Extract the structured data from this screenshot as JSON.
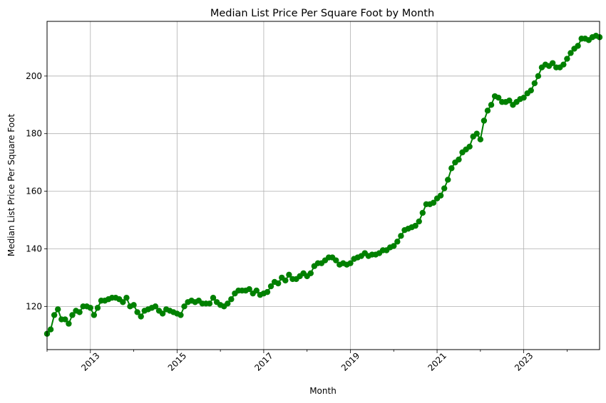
{
  "chart_data": {
    "type": "line",
    "title": "Median List Price Per Square Foot by Month",
    "xlabel": "Month",
    "ylabel": "Median List Price Per Square Foot",
    "x_range": [
      "2012-01",
      "2024-10"
    ],
    "ylim": [
      105,
      219
    ],
    "grid": true,
    "line_color": "#008000",
    "marker": "circle",
    "x_ticks": [
      "2013",
      "2015",
      "2017",
      "2019",
      "2021",
      "2023"
    ],
    "y_ticks": [
      120,
      140,
      160,
      180,
      200
    ],
    "series": [
      {
        "points": [
          [
            "2012-01",
            110.5
          ],
          [
            "2012-02",
            112.0
          ],
          [
            "2012-03",
            117.0
          ],
          [
            "2012-04",
            119.0
          ],
          [
            "2012-05",
            115.5
          ],
          [
            "2012-06",
            115.5
          ],
          [
            "2012-07",
            114.0
          ],
          [
            "2012-08",
            117.0
          ],
          [
            "2012-09",
            118.5
          ],
          [
            "2012-10",
            118.0
          ],
          [
            "2012-11",
            120.0
          ],
          [
            "2012-12",
            120.0
          ],
          [
            "2013-01",
            119.5
          ],
          [
            "2013-02",
            117.0
          ],
          [
            "2013-03",
            119.5
          ],
          [
            "2013-04",
            122.0
          ],
          [
            "2013-05",
            122.0
          ],
          [
            "2013-06",
            122.5
          ],
          [
            "2013-07",
            123.0
          ],
          [
            "2013-08",
            123.0
          ],
          [
            "2013-09",
            122.5
          ],
          [
            "2013-10",
            121.5
          ],
          [
            "2013-11",
            123.0
          ],
          [
            "2013-12",
            120.0
          ],
          [
            "2014-01",
            120.5
          ],
          [
            "2014-02",
            118.0
          ],
          [
            "2014-03",
            116.5
          ],
          [
            "2014-04",
            118.5
          ],
          [
            "2014-05",
            119.0
          ],
          [
            "2014-06",
            119.5
          ],
          [
            "2014-07",
            120.0
          ],
          [
            "2014-08",
            118.5
          ],
          [
            "2014-09",
            117.5
          ],
          [
            "2014-10",
            119.0
          ],
          [
            "2014-11",
            118.5
          ],
          [
            "2014-12",
            118.0
          ],
          [
            "2015-01",
            117.5
          ],
          [
            "2015-02",
            117.0
          ],
          [
            "2015-03",
            120.0
          ],
          [
            "2015-04",
            121.5
          ],
          [
            "2015-05",
            122.0
          ],
          [
            "2015-06",
            121.5
          ],
          [
            "2015-07",
            122.0
          ],
          [
            "2015-08",
            121.0
          ],
          [
            "2015-09",
            121.0
          ],
          [
            "2015-10",
            121.0
          ],
          [
            "2015-11",
            123.0
          ],
          [
            "2015-12",
            121.5
          ],
          [
            "2016-01",
            120.5
          ],
          [
            "2016-02",
            120.0
          ],
          [
            "2016-03",
            121.0
          ],
          [
            "2016-04",
            122.5
          ],
          [
            "2016-05",
            124.5
          ],
          [
            "2016-06",
            125.5
          ],
          [
            "2016-07",
            125.5
          ],
          [
            "2016-08",
            125.5
          ],
          [
            "2016-09",
            126.0
          ],
          [
            "2016-10",
            124.5
          ],
          [
            "2016-11",
            125.5
          ],
          [
            "2016-12",
            124.0
          ],
          [
            "2017-01",
            124.5
          ],
          [
            "2017-02",
            125.0
          ],
          [
            "2017-03",
            127.0
          ],
          [
            "2017-04",
            128.5
          ],
          [
            "2017-05",
            128.0
          ],
          [
            "2017-06",
            130.0
          ],
          [
            "2017-07",
            129.0
          ],
          [
            "2017-08",
            131.0
          ],
          [
            "2017-09",
            129.5
          ],
          [
            "2017-10",
            129.5
          ],
          [
            "2017-11",
            130.5
          ],
          [
            "2017-12",
            131.5
          ],
          [
            "2018-01",
            130.5
          ],
          [
            "2018-02",
            131.5
          ],
          [
            "2018-03",
            134.0
          ],
          [
            "2018-04",
            135.0
          ],
          [
            "2018-05",
            135.0
          ],
          [
            "2018-06",
            136.0
          ],
          [
            "2018-07",
            137.0
          ],
          [
            "2018-08",
            137.0
          ],
          [
            "2018-09",
            136.0
          ],
          [
            "2018-10",
            134.5
          ],
          [
            "2018-11",
            135.0
          ],
          [
            "2018-12",
            134.5
          ],
          [
            "2019-01",
            135.0
          ],
          [
            "2019-02",
            136.5
          ],
          [
            "2019-03",
            137.0
          ],
          [
            "2019-04",
            137.5
          ],
          [
            "2019-05",
            138.5
          ],
          [
            "2019-06",
            137.5
          ],
          [
            "2019-07",
            138.0
          ],
          [
            "2019-08",
            138.0
          ],
          [
            "2019-09",
            138.5
          ],
          [
            "2019-10",
            139.5
          ],
          [
            "2019-11",
            139.5
          ],
          [
            "2019-12",
            140.5
          ],
          [
            "2020-01",
            141.0
          ],
          [
            "2020-02",
            142.5
          ],
          [
            "2020-03",
            144.5
          ],
          [
            "2020-04",
            146.5
          ],
          [
            "2020-05",
            147.0
          ],
          [
            "2020-06",
            147.5
          ],
          [
            "2020-07",
            148.0
          ],
          [
            "2020-08",
            149.5
          ],
          [
            "2020-09",
            152.5
          ],
          [
            "2020-10",
            155.5
          ],
          [
            "2020-11",
            155.5
          ],
          [
            "2020-12",
            156.0
          ],
          [
            "2021-01",
            157.5
          ],
          [
            "2021-02",
            158.5
          ],
          [
            "2021-03",
            161.0
          ],
          [
            "2021-04",
            164.0
          ],
          [
            "2021-05",
            168.0
          ],
          [
            "2021-06",
            170.0
          ],
          [
            "2021-07",
            171.0
          ],
          [
            "2021-08",
            173.5
          ],
          [
            "2021-09",
            174.5
          ],
          [
            "2021-10",
            175.5
          ],
          [
            "2021-11",
            179.0
          ],
          [
            "2021-12",
            180.0
          ],
          [
            "2022-01",
            178.0
          ],
          [
            "2022-02",
            184.5
          ],
          [
            "2022-03",
            188.0
          ],
          [
            "2022-04",
            190.0
          ],
          [
            "2022-05",
            193.0
          ],
          [
            "2022-06",
            192.5
          ],
          [
            "2022-07",
            191.0
          ],
          [
            "2022-08",
            191.0
          ],
          [
            "2022-09",
            191.5
          ],
          [
            "2022-10",
            190.0
          ],
          [
            "2022-11",
            191.0
          ],
          [
            "2022-12",
            192.0
          ],
          [
            "2023-01",
            192.5
          ],
          [
            "2023-02",
            194.0
          ],
          [
            "2023-03",
            195.0
          ],
          [
            "2023-04",
            197.5
          ],
          [
            "2023-05",
            200.0
          ],
          [
            "2023-06",
            203.0
          ],
          [
            "2023-07",
            204.0
          ],
          [
            "2023-08",
            203.5
          ],
          [
            "2023-09",
            204.5
          ],
          [
            "2023-10",
            203.0
          ],
          [
            "2023-11",
            203.0
          ],
          [
            "2023-12",
            204.0
          ],
          [
            "2024-01",
            206.0
          ],
          [
            "2024-02",
            208.0
          ],
          [
            "2024-03",
            209.5
          ],
          [
            "2024-04",
            210.5
          ],
          [
            "2024-05",
            213.0
          ],
          [
            "2024-06",
            213.0
          ],
          [
            "2024-07",
            212.5
          ],
          [
            "2024-08",
            213.5
          ],
          [
            "2024-09",
            214.0
          ],
          [
            "2024-10",
            213.5
          ]
        ]
      }
    ]
  }
}
